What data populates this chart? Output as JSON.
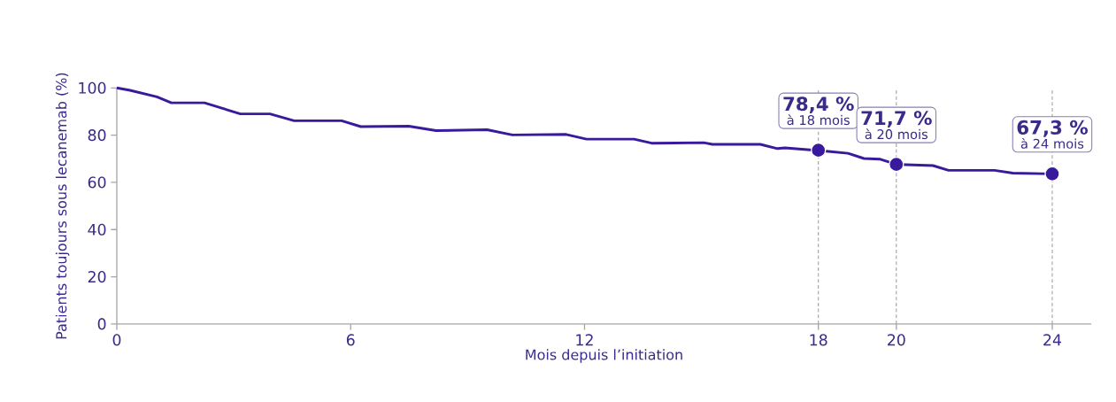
{
  "chart_data": {
    "type": "line",
    "xlabel": "Mois depuis l’initiation",
    "ylabel": "Patients toujours sous lecanemab (%)",
    "xlim": [
      0,
      25
    ],
    "ylim": [
      0,
      100
    ],
    "xticks": [
      0,
      6,
      12,
      18,
      20,
      24
    ],
    "yticks": [
      0,
      20,
      40,
      60,
      80,
      100
    ],
    "grid": false,
    "series": [
      {
        "color": "#3a1a9c",
        "line_style": "solid",
        "x": [
          0,
          0.34,
          1.03,
          1.4,
          2.25,
          3.17,
          3.93,
          4.55,
          5.77,
          6.26,
          7.49,
          8.19,
          9.5,
          10.15,
          11.53,
          12.05,
          13.27,
          13.72,
          15.06,
          15.28,
          16.51,
          16.95,
          17.14,
          17.93,
          18.26,
          18.76,
          19.17,
          19.59,
          20,
          20.94,
          21.34,
          22.52,
          22.99,
          24
        ],
        "values": [
          100,
          99,
          96.2,
          93.7,
          93.7,
          89,
          89,
          86.1,
          86.1,
          83.6,
          83.8,
          81.9,
          82.3,
          80.1,
          80.3,
          78.3,
          78.3,
          76.6,
          76.8,
          76.1,
          76.1,
          74.3,
          74.6,
          73.6,
          73.1,
          72.3,
          70.1,
          69.8,
          67.6,
          67.1,
          65.1,
          65.1,
          63.9,
          63.6
        ]
      },
      {
        "type": "scatter",
        "color": "#3a1a9c",
        "marker": "circle",
        "x": [
          18,
          20,
          24
        ],
        "values": [
          73.6,
          67.6,
          63.6
        ]
      }
    ],
    "ref_lines": [
      {
        "axis": "x",
        "value": 18,
        "color": "#a0a0a0",
        "line_style": "dashed"
      },
      {
        "axis": "x",
        "value": 20,
        "color": "#a0a0a0",
        "line_style": "dashed"
      },
      {
        "axis": "x",
        "value": 24,
        "color": "#a0a0a0",
        "line_style": "dashed"
      }
    ],
    "annotations": [
      {
        "text": "78,4 %",
        "x": 18,
        "y": 73.6
      },
      {
        "text": "à 18 mois",
        "x": 18,
        "y": 73.6
      },
      {
        "text": "71,7 %",
        "x": 20,
        "y": 67.6
      },
      {
        "text": "à 20 mois",
        "x": 20,
        "y": 67.6
      },
      {
        "text": "67,3 %",
        "x": 24,
        "y": 63.6
      },
      {
        "text": "à 24 mois",
        "x": 24,
        "y": 63.6
      }
    ]
  }
}
